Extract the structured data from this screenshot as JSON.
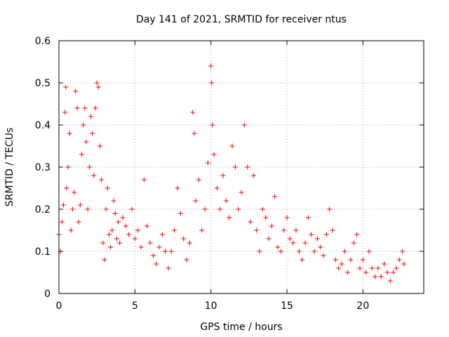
{
  "chart_data": {
    "type": "scatter",
    "title": "Day 141 of 2021, SRMTID for receiver ntus",
    "xlabel": "GPS time / hours",
    "ylabel": "SRMTID / TECUs",
    "xlim": [
      0,
      24
    ],
    "ylim": [
      0,
      0.6
    ],
    "xticks": [
      0,
      5,
      10,
      15,
      20
    ],
    "xtick_labels": [
      "0",
      "5",
      "10",
      "15",
      "20"
    ],
    "yticks": [
      0,
      0.1,
      0.2,
      0.3,
      0.4,
      0.5,
      0.6
    ],
    "ytick_labels": [
      "0",
      "0.1",
      "0.2",
      "0.3",
      "0.4",
      "0.5",
      "0.6"
    ],
    "grid": true,
    "marker": "+",
    "color": "#ff0000",
    "series": [
      {
        "name": "SRMTID",
        "points": [
          [
            0.0,
            0.14
          ],
          [
            0.1,
            0.1
          ],
          [
            0.2,
            0.17
          ],
          [
            0.3,
            0.21
          ],
          [
            0.4,
            0.43
          ],
          [
            0.45,
            0.49
          ],
          [
            0.5,
            0.25
          ],
          [
            0.6,
            0.3
          ],
          [
            0.7,
            0.38
          ],
          [
            0.8,
            0.15
          ],
          [
            0.9,
            0.2
          ],
          [
            1.0,
            0.24
          ],
          [
            1.1,
            0.48
          ],
          [
            1.2,
            0.44
          ],
          [
            1.3,
            0.17
          ],
          [
            1.4,
            0.21
          ],
          [
            1.5,
            0.33
          ],
          [
            1.6,
            0.4
          ],
          [
            1.7,
            0.44
          ],
          [
            1.8,
            0.36
          ],
          [
            1.9,
            0.2
          ],
          [
            2.0,
            0.3
          ],
          [
            2.1,
            0.42
          ],
          [
            2.2,
            0.38
          ],
          [
            2.3,
            0.28
          ],
          [
            2.4,
            0.44
          ],
          [
            2.5,
            0.5
          ],
          [
            2.6,
            0.49
          ],
          [
            2.7,
            0.35
          ],
          [
            2.8,
            0.27
          ],
          [
            2.9,
            0.12
          ],
          [
            3.0,
            0.08
          ],
          [
            3.1,
            0.2
          ],
          [
            3.2,
            0.25
          ],
          [
            3.3,
            0.14
          ],
          [
            3.4,
            0.11
          ],
          [
            3.5,
            0.15
          ],
          [
            3.6,
            0.22
          ],
          [
            3.7,
            0.19
          ],
          [
            3.8,
            0.13
          ],
          [
            3.9,
            0.17
          ],
          [
            4.0,
            0.12
          ],
          [
            4.2,
            0.18
          ],
          [
            4.4,
            0.16
          ],
          [
            4.6,
            0.14
          ],
          [
            4.8,
            0.2
          ],
          [
            5.0,
            0.13
          ],
          [
            5.2,
            0.15
          ],
          [
            5.4,
            0.11
          ],
          [
            5.6,
            0.27
          ],
          [
            5.8,
            0.16
          ],
          [
            6.0,
            0.12
          ],
          [
            6.2,
            0.09
          ],
          [
            6.4,
            0.07
          ],
          [
            6.6,
            0.11
          ],
          [
            6.8,
            0.14
          ],
          [
            7.0,
            0.1
          ],
          [
            7.2,
            0.06
          ],
          [
            7.4,
            0.1
          ],
          [
            7.6,
            0.15
          ],
          [
            7.8,
            0.25
          ],
          [
            8.0,
            0.19
          ],
          [
            8.2,
            0.13
          ],
          [
            8.4,
            0.08
          ],
          [
            8.6,
            0.12
          ],
          [
            8.8,
            0.43
          ],
          [
            8.9,
            0.38
          ],
          [
            9.0,
            0.22
          ],
          [
            9.2,
            0.27
          ],
          [
            9.4,
            0.15
          ],
          [
            9.6,
            0.2
          ],
          [
            9.8,
            0.31
          ],
          [
            10.0,
            0.54
          ],
          [
            10.05,
            0.5
          ],
          [
            10.1,
            0.4
          ],
          [
            10.2,
            0.33
          ],
          [
            10.4,
            0.25
          ],
          [
            10.6,
            0.2
          ],
          [
            10.8,
            0.28
          ],
          [
            11.0,
            0.22
          ],
          [
            11.2,
            0.18
          ],
          [
            11.4,
            0.35
          ],
          [
            11.6,
            0.3
          ],
          [
            11.8,
            0.2
          ],
          [
            12.0,
            0.24
          ],
          [
            12.2,
            0.4
          ],
          [
            12.4,
            0.3
          ],
          [
            12.6,
            0.17
          ],
          [
            12.8,
            0.28
          ],
          [
            13.0,
            0.15
          ],
          [
            13.2,
            0.1
          ],
          [
            13.4,
            0.2
          ],
          [
            13.6,
            0.18
          ],
          [
            13.8,
            0.13
          ],
          [
            14.0,
            0.16
          ],
          [
            14.2,
            0.23
          ],
          [
            14.4,
            0.11
          ],
          [
            14.6,
            0.1
          ],
          [
            14.8,
            0.15
          ],
          [
            15.0,
            0.18
          ],
          [
            15.2,
            0.13
          ],
          [
            15.4,
            0.12
          ],
          [
            15.6,
            0.15
          ],
          [
            15.8,
            0.1
          ],
          [
            16.0,
            0.08
          ],
          [
            16.2,
            0.12
          ],
          [
            16.4,
            0.18
          ],
          [
            16.6,
            0.14
          ],
          [
            16.8,
            0.1
          ],
          [
            17.0,
            0.13
          ],
          [
            17.2,
            0.11
          ],
          [
            17.4,
            0.09
          ],
          [
            17.6,
            0.14
          ],
          [
            17.8,
            0.2
          ],
          [
            18.0,
            0.15
          ],
          [
            18.2,
            0.08
          ],
          [
            18.4,
            0.06
          ],
          [
            18.6,
            0.07
          ],
          [
            18.8,
            0.1
          ],
          [
            19.0,
            0.05
          ],
          [
            19.2,
            0.08
          ],
          [
            19.4,
            0.12
          ],
          [
            19.6,
            0.14
          ],
          [
            19.8,
            0.06
          ],
          [
            20.0,
            0.08
          ],
          [
            20.2,
            0.05
          ],
          [
            20.4,
            0.1
          ],
          [
            20.6,
            0.06
          ],
          [
            20.8,
            0.04
          ],
          [
            21.0,
            0.06
          ],
          [
            21.2,
            0.04
          ],
          [
            21.4,
            0.07
          ],
          [
            21.6,
            0.05
          ],
          [
            21.8,
            0.03
          ],
          [
            22.0,
            0.05
          ],
          [
            22.2,
            0.06
          ],
          [
            22.4,
            0.08
          ],
          [
            22.6,
            0.1
          ],
          [
            22.7,
            0.07
          ]
        ]
      }
    ]
  }
}
